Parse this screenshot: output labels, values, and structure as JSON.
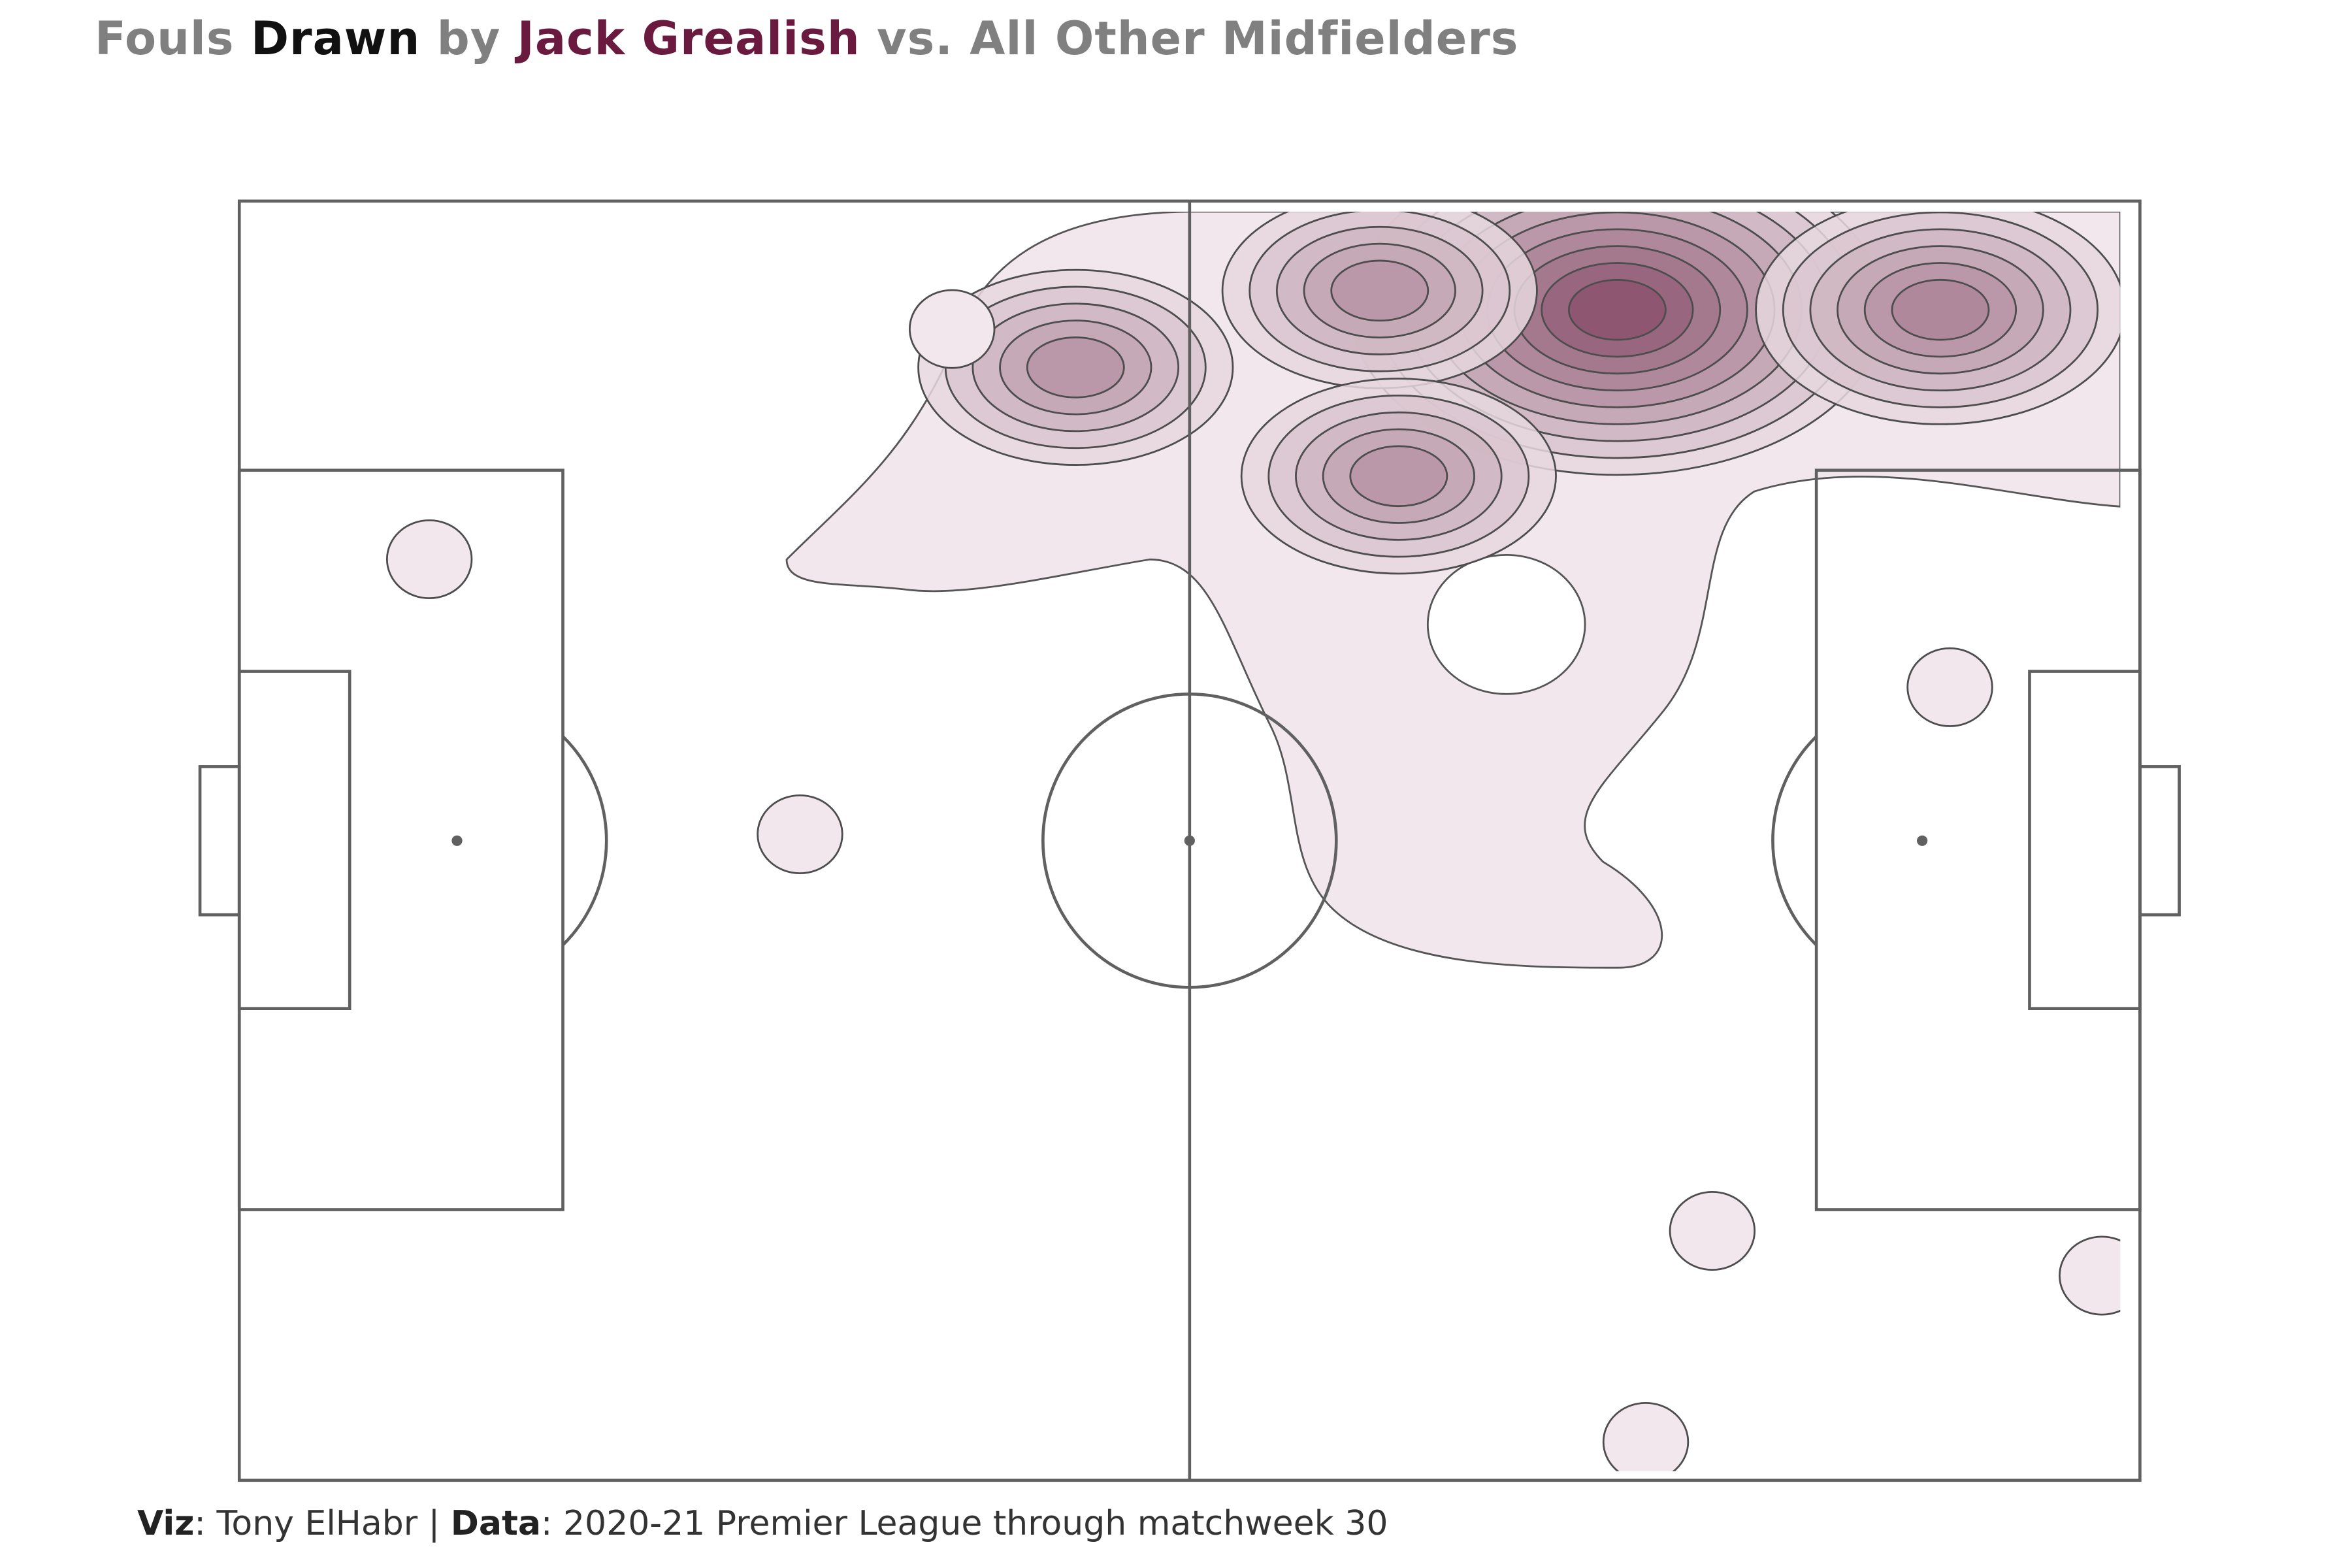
{
  "title": {
    "part1": "Fouls ",
    "part2": "Drawn",
    "part3": " by ",
    "part4": "Jack Grealish",
    "part5": " vs. All Other Midfielders"
  },
  "caption": {
    "viz_label": "Viz",
    "viz_value": ": Tony ElHabr | ",
    "data_label": "Data",
    "data_value": ": 2020-21 Premier League through matchweek 30"
  },
  "colors": {
    "title_muted": "#808080",
    "title_emphasis": "#111111",
    "player": "#6a1a3e",
    "pitch_line": "#606060",
    "density_low": "#f1e7ec",
    "density_high": "#8c546f"
  },
  "chart_data": {
    "type": "heatmap",
    "description_units": "pitch coordinates, x 0-100 (left to right attack), y 0-100 (bottom to top)",
    "x_range": [
      0,
      100
    ],
    "y_range": [
      0,
      100
    ],
    "density_peaks": [
      {
        "x": 72.5,
        "y": 91.5,
        "level": 9
      },
      {
        "x": 89.5,
        "y": 91.5,
        "level": 6
      },
      {
        "x": 44.0,
        "y": 87.0,
        "level": 5
      },
      {
        "x": 60.0,
        "y": 93.0,
        "level": 5
      },
      {
        "x": 61.0,
        "y": 78.5,
        "level": 5
      },
      {
        "x": 37.5,
        "y": 90.0,
        "level": 1
      },
      {
        "x": 10.0,
        "y": 72.0,
        "level": 1
      },
      {
        "x": 29.5,
        "y": 50.5,
        "level": 1
      },
      {
        "x": 90.0,
        "y": 62.0,
        "level": 1
      },
      {
        "x": 77.5,
        "y": 19.5,
        "level": 1
      },
      {
        "x": 98.0,
        "y": 16.0,
        "level": 1
      },
      {
        "x": 74.0,
        "y": 3.0,
        "level": 1
      }
    ],
    "grid": false,
    "legend": "none"
  }
}
